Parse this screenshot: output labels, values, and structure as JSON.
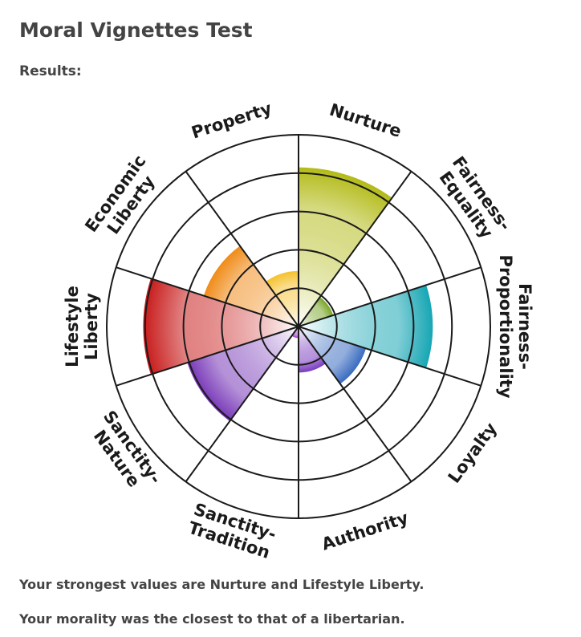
{
  "header": {
    "title": "Moral Vignettes Test",
    "subtitle": "Results:"
  },
  "chart_data": {
    "type": "polar-area",
    "categories": [
      [
        "Nurture"
      ],
      [
        "Fairness-",
        "Equality"
      ],
      [
        "Fairness-",
        "Proportionality"
      ],
      [
        "Loyalty"
      ],
      [
        "Authority"
      ],
      [
        "Sanctity-",
        "Tradition"
      ],
      [
        "Sanctity-",
        "Nature"
      ],
      [
        "Lifestyle",
        "Liberty"
      ],
      [
        "Economic",
        "Liberty"
      ],
      [
        "Property"
      ]
    ],
    "values": [
      4.15,
      0.95,
      3.5,
      1.85,
      1.2,
      0.3,
      3.05,
      4.05,
      2.6,
      1.45
    ],
    "colors": [
      "#b3bb18",
      "#7aa62a",
      "#17a6b4",
      "#3a6cc0",
      "#7a3cc0",
      "#a23cc4",
      "#7838b8",
      "#c81a1a",
      "#f08c1a",
      "#f5c12e"
    ],
    "rlim": [
      0,
      5
    ],
    "rticks": [
      1,
      2,
      3,
      4,
      5
    ]
  },
  "footer": {
    "lines": [
      "Your strongest values are Nurture and Lifestyle Liberty.",
      "Your morality was the closest to that of a libertarian."
    ]
  }
}
